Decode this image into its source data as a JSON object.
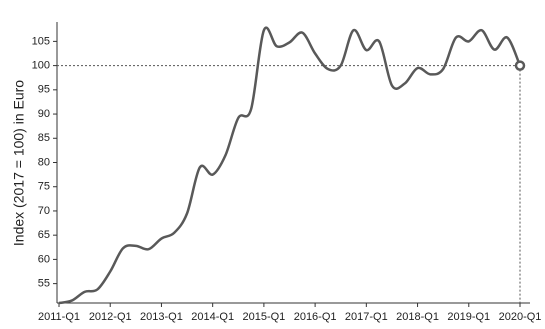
{
  "chart_data": {
    "type": "line",
    "y_label": "Index (2017 = 100) in Euro",
    "categories": [
      "2011-Q1",
      null,
      null,
      null,
      "2012-Q1",
      null,
      null,
      null,
      "2013-Q1",
      null,
      null,
      null,
      "2014-Q1",
      null,
      null,
      null,
      "2015-Q1",
      null,
      null,
      null,
      "2016-Q1",
      null,
      null,
      null,
      "2017-Q1",
      null,
      null,
      null,
      "2018-Q1",
      null,
      null,
      null,
      "2019-Q1",
      null,
      null,
      null,
      "2020-Q1"
    ],
    "series": [
      {
        "name": "Index",
        "color": "#595959",
        "values": [
          51,
          51.5,
          53.3,
          53.8,
          57.5,
          62.3,
          62.8,
          62.1,
          64.3,
          65.5,
          69.5,
          79,
          77.5,
          81.5,
          89.2,
          91,
          107.3,
          104,
          104.8,
          106.8,
          102.5,
          99.3,
          100,
          107.3,
          103.2,
          105,
          95.9,
          96.3,
          99.5,
          98.2,
          99.3,
          105.8,
          105,
          107.3,
          103.3,
          105.8,
          100
        ]
      }
    ],
    "reference_line": 100,
    "ylim": [
      51,
      109
    ],
    "yticks": [
      55,
      60,
      65,
      70,
      75,
      80,
      85,
      90,
      95,
      100,
      105
    ]
  }
}
